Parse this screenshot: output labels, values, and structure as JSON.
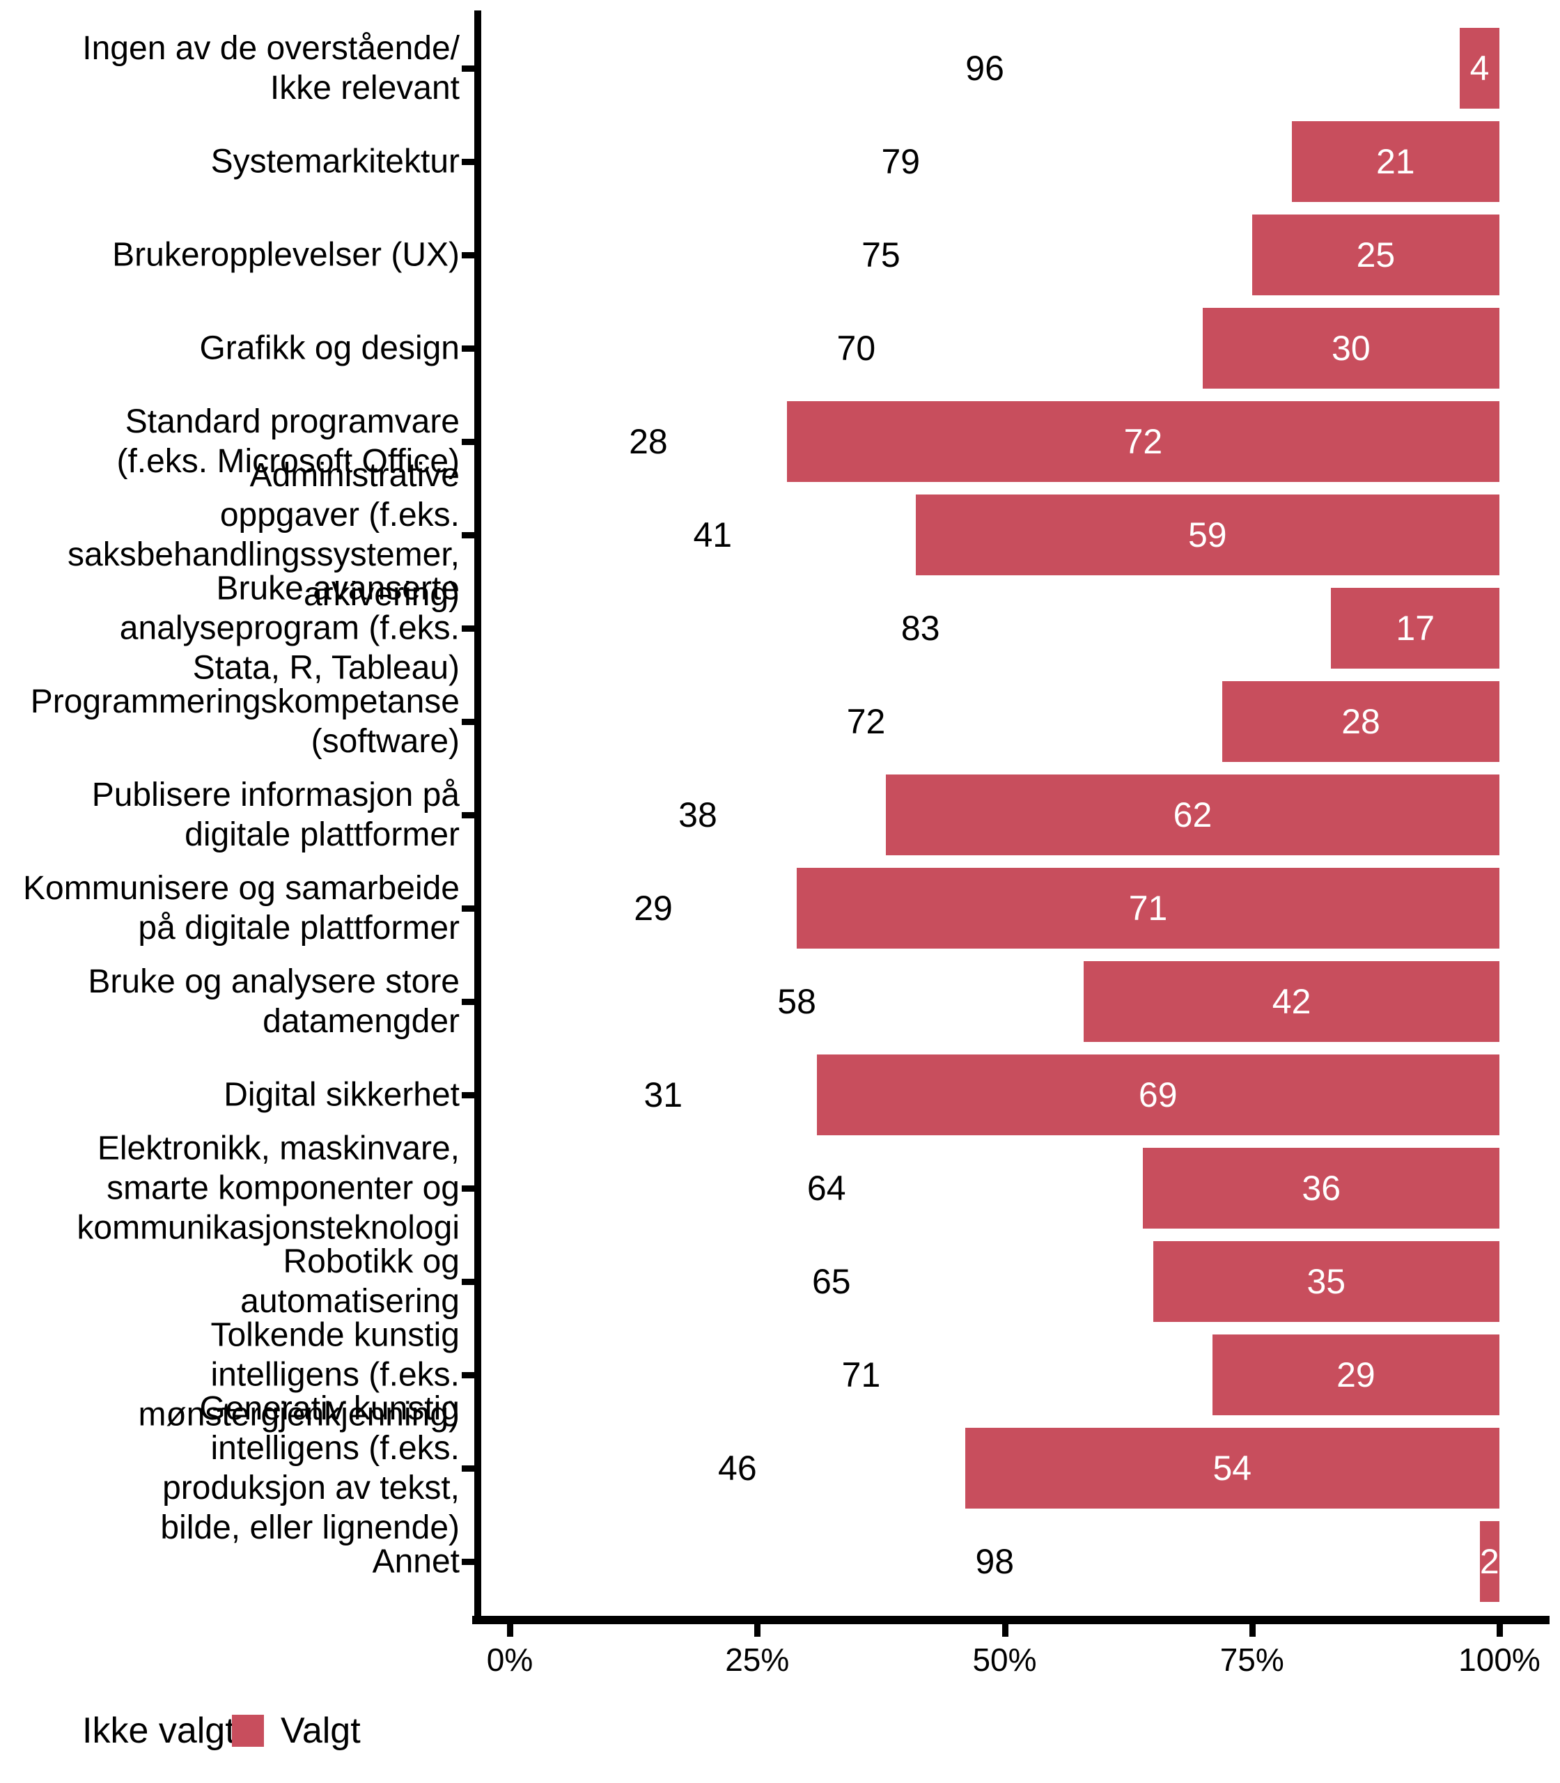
{
  "chart_data": {
    "type": "bar",
    "orientation": "horizontal",
    "stacked": true,
    "percent_scale": true,
    "title": "",
    "xlabel": "",
    "ylabel": "",
    "xlim": [
      0,
      100
    ],
    "grid": false,
    "axis_color": "#000000",
    "x_ticks": [
      {
        "value": 0,
        "label": "0%"
      },
      {
        "value": 25,
        "label": "25%"
      },
      {
        "value": 50,
        "label": "50%"
      },
      {
        "value": 75,
        "label": "75%"
      },
      {
        "value": 100,
        "label": "100%"
      }
    ],
    "categories": [
      [
        "Ingen av de overstående/",
        "Ikke relevant"
      ],
      [
        "Systemarkitektur"
      ],
      [
        "Brukeropplevelser (UX)"
      ],
      [
        "Grafikk og design"
      ],
      [
        "Standard programvare",
        "(f.eks. Microsoft Office)"
      ],
      [
        "Administrative",
        "oppgaver (f.eks.",
        "saksbehandlingssystemer,",
        "arkivering)"
      ],
      [
        "Bruke avanserte",
        "analyseprogram (f.eks.",
        "Stata, R, Tableau)"
      ],
      [
        "Programmeringskompetanse",
        "(software)"
      ],
      [
        "Publisere informasjon på",
        "digitale plattformer"
      ],
      [
        "Kommunisere og samarbeide",
        "på digitale plattformer"
      ],
      [
        "Bruke og analysere store",
        "datamengder"
      ],
      [
        "Digital sikkerhet"
      ],
      [
        "Elektronikk, maskinvare,",
        "smarte komponenter og",
        "kommunikasjonsteknologi"
      ],
      [
        "Robotikk og",
        "automatisering"
      ],
      [
        "Tolkende kunstig",
        "intelligens (f.eks.",
        "mønstergjenkjenning)"
      ],
      [
        "Generativ kunstig",
        "intelligens (f.eks.",
        "produksjon av tekst,",
        "bilde, eller lignende)"
      ],
      [
        "Annet"
      ]
    ],
    "series": [
      {
        "name": "Ikke valgt",
        "color": "#FFFFFF",
        "label_color": "#000000",
        "values": [
          96,
          79,
          75,
          70,
          28,
          41,
          83,
          72,
          38,
          29,
          58,
          31,
          64,
          65,
          71,
          46,
          98
        ]
      },
      {
        "name": "Valgt",
        "color": "#C84E5D",
        "label_color": "#FFFFFF",
        "values": [
          4,
          21,
          25,
          30,
          72,
          59,
          17,
          28,
          62,
          71,
          42,
          69,
          36,
          35,
          29,
          54,
          2
        ]
      }
    ],
    "legend": {
      "position": "bottom-left",
      "items": [
        {
          "label": "Ikke valgt",
          "color": "#FFFFFF"
        },
        {
          "label": "Valgt",
          "color": "#C84E5D"
        }
      ]
    }
  }
}
